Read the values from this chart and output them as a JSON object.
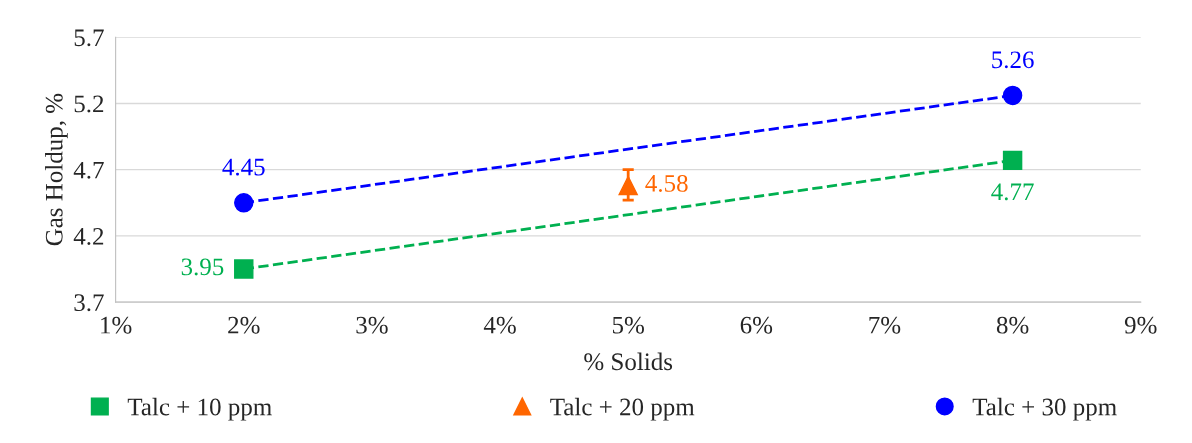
{
  "chart_data": {
    "type": "scatter",
    "xlabel": "% Solids",
    "ylabel": "Gas Holdup, %",
    "xlim": [
      1,
      9
    ],
    "xticks": [
      {
        "value": 1,
        "label": "1%"
      },
      {
        "value": 2,
        "label": "2%"
      },
      {
        "value": 3,
        "label": "3%"
      },
      {
        "value": 4,
        "label": "4%"
      },
      {
        "value": 5,
        "label": "5%"
      },
      {
        "value": 6,
        "label": "6%"
      },
      {
        "value": 7,
        "label": "7%"
      },
      {
        "value": 8,
        "label": "8%"
      },
      {
        "value": 9,
        "label": "9%"
      }
    ],
    "ylim": [
      3.7,
      5.7
    ],
    "yticks": [
      3.7,
      4.2,
      4.7,
      5.2,
      5.7
    ],
    "grid": "y",
    "legend": "bottom",
    "series": [
      {
        "name": "Talc + 10 ppm",
        "color": "#00b050",
        "marker": "square",
        "x": [
          2,
          8
        ],
        "values": [
          3.95,
          4.77
        ],
        "value_labels": [
          "3.95",
          "4.77"
        ]
      },
      {
        "name": "Talc + 20 ppm",
        "color": "#ff6600",
        "marker": "triangle",
        "x": [
          5
        ],
        "values": [
          4.58
        ],
        "value_labels": [
          "4.58"
        ],
        "errors": [
          [
            4.47,
            4.7
          ]
        ]
      },
      {
        "name": "Talc + 30 ppm",
        "color": "#0000ff",
        "marker": "circle",
        "x": [
          2,
          8
        ],
        "values": [
          4.45,
          5.26
        ],
        "value_labels": [
          "4.45",
          "5.26"
        ]
      },
      {
        "type": "line",
        "color": "#00b050",
        "line_style": "dashed",
        "marker": "none",
        "x": [
          2,
          8
        ],
        "values": [
          3.95,
          4.77
        ]
      },
      {
        "type": "line",
        "color": "#0000ff",
        "line_style": "dashed",
        "marker": "none",
        "x": [
          2,
          8
        ],
        "values": [
          4.45,
          5.26
        ]
      }
    ]
  }
}
